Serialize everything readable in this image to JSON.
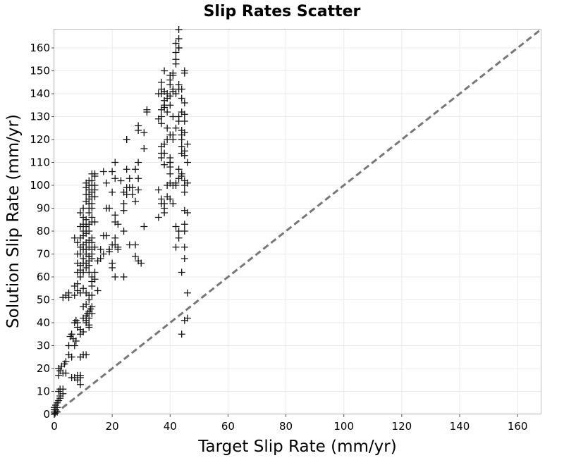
{
  "chart_data": {
    "type": "scatter",
    "title": "Slip Rates Scatter",
    "xlabel": "Target Slip Rate (mm/yr)",
    "ylabel": "Solution Slip Rate (mm/yr)",
    "xlim": [
      0,
      168
    ],
    "ylim": [
      0,
      168
    ],
    "xticks": [
      0,
      20,
      40,
      60,
      80,
      100,
      120,
      140,
      160
    ],
    "yticks": [
      0,
      10,
      20,
      30,
      40,
      50,
      60,
      70,
      80,
      90,
      100,
      110,
      120,
      130,
      140,
      150,
      160
    ],
    "grid": true,
    "marker": "+",
    "colors": {
      "marker": "#111111",
      "reference_line": "#777777",
      "grid": "#ebebeb",
      "frame": "#bdbdbd"
    },
    "reference_line": {
      "style": "dashed",
      "points": [
        [
          0,
          0
        ],
        [
          168,
          168
        ]
      ]
    },
    "points": [
      [
        0,
        0
      ],
      [
        0,
        1
      ],
      [
        0,
        2
      ],
      [
        0,
        3
      ],
      [
        0.3,
        0.5
      ],
      [
        0.5,
        2
      ],
      [
        0.5,
        4
      ],
      [
        1,
        1
      ],
      [
        1,
        3
      ],
      [
        1,
        5
      ],
      [
        1.5,
        6
      ],
      [
        1.5,
        10
      ],
      [
        2,
        7
      ],
      [
        2,
        8
      ],
      [
        2,
        11
      ],
      [
        1.5,
        17
      ],
      [
        1.5,
        20
      ],
      [
        2,
        19
      ],
      [
        2.5,
        21
      ],
      [
        3,
        18
      ],
      [
        3.5,
        22
      ],
      [
        3,
        11
      ],
      [
        3,
        9
      ],
      [
        4,
        23
      ],
      [
        4,
        18
      ],
      [
        5,
        26
      ],
      [
        5,
        30
      ],
      [
        6,
        25
      ],
      [
        5.5,
        34
      ],
      [
        6,
        35
      ],
      [
        6.5,
        33
      ],
      [
        7,
        30
      ],
      [
        7.5,
        32
      ],
      [
        6,
        16
      ],
      [
        7,
        16
      ],
      [
        8,
        15
      ],
      [
        8,
        17
      ],
      [
        9,
        16
      ],
      [
        9,
        13
      ],
      [
        9,
        17
      ],
      [
        9,
        25
      ],
      [
        10,
        26
      ],
      [
        11,
        26
      ],
      [
        7,
        40
      ],
      [
        7.5,
        41
      ],
      [
        8,
        38
      ],
      [
        8,
        40
      ],
      [
        9,
        37
      ],
      [
        9,
        35
      ],
      [
        10,
        36
      ],
      [
        10,
        42
      ],
      [
        11,
        40
      ],
      [
        11.5,
        44
      ],
      [
        12,
        45
      ],
      [
        12,
        42
      ],
      [
        12.5,
        46
      ],
      [
        13,
        47
      ],
      [
        13,
        44
      ],
      [
        11,
        48
      ],
      [
        10,
        47
      ],
      [
        11,
        43
      ],
      [
        12,
        39
      ],
      [
        12,
        38
      ],
      [
        11,
        41
      ],
      [
        12,
        52
      ],
      [
        12,
        50
      ],
      [
        13,
        52
      ],
      [
        13,
        56
      ],
      [
        13,
        58
      ],
      [
        12,
        62
      ],
      [
        13,
        60
      ],
      [
        14,
        62
      ],
      [
        14,
        59
      ],
      [
        15,
        54
      ],
      [
        3,
        51
      ],
      [
        4,
        52
      ],
      [
        5,
        51
      ],
      [
        5,
        53
      ],
      [
        7,
        52
      ],
      [
        7,
        56
      ],
      [
        8,
        54
      ],
      [
        9,
        53
      ],
      [
        10,
        55
      ],
      [
        11,
        53
      ],
      [
        8,
        57
      ],
      [
        8,
        62
      ],
      [
        9,
        60
      ],
      [
        9,
        63
      ],
      [
        10,
        62
      ],
      [
        11,
        64
      ],
      [
        11,
        66
      ],
      [
        12,
        67
      ],
      [
        12,
        65
      ],
      [
        12,
        69
      ],
      [
        13,
        68
      ],
      [
        13,
        70
      ],
      [
        10,
        68
      ],
      [
        9,
        70
      ],
      [
        9,
        73
      ],
      [
        10,
        72
      ],
      [
        10,
        74
      ],
      [
        11,
        72
      ],
      [
        11,
        70
      ],
      [
        11,
        75
      ],
      [
        12,
        73
      ],
      [
        12,
        76
      ],
      [
        13,
        77
      ],
      [
        13,
        75
      ],
      [
        14,
        73
      ],
      [
        13,
        72
      ],
      [
        8,
        66
      ],
      [
        9,
        65
      ],
      [
        10,
        66
      ],
      [
        8,
        70
      ],
      [
        8,
        75
      ],
      [
        9,
        77
      ],
      [
        10,
        78
      ],
      [
        10,
        80
      ],
      [
        11,
        82
      ],
      [
        11,
        85
      ],
      [
        12,
        83
      ],
      [
        12,
        80
      ],
      [
        13,
        84
      ],
      [
        13,
        86
      ],
      [
        14,
        84
      ],
      [
        12,
        88
      ],
      [
        12,
        90
      ],
      [
        12,
        92
      ],
      [
        12,
        94
      ],
      [
        12,
        96
      ],
      [
        12,
        98
      ],
      [
        13,
        90
      ],
      [
        13,
        92
      ],
      [
        13,
        95
      ],
      [
        13,
        97
      ],
      [
        13,
        100
      ],
      [
        13,
        102
      ],
      [
        14,
        104
      ],
      [
        14,
        100
      ],
      [
        14,
        98
      ],
      [
        14,
        95
      ],
      [
        12,
        100
      ],
      [
        12,
        102
      ],
      [
        11,
        96
      ],
      [
        11,
        93
      ],
      [
        11,
        99
      ],
      [
        11,
        101
      ],
      [
        13,
        105
      ],
      [
        14,
        105
      ],
      [
        11,
        79
      ],
      [
        10,
        83
      ],
      [
        10,
        86
      ],
      [
        9,
        88
      ],
      [
        9,
        82
      ],
      [
        10,
        90
      ],
      [
        7,
        77
      ],
      [
        12,
        69
      ],
      [
        15,
        67
      ],
      [
        16,
        68
      ],
      [
        16,
        72
      ],
      [
        17,
        70
      ],
      [
        17,
        78
      ],
      [
        18,
        78
      ],
      [
        19,
        72
      ],
      [
        19,
        71
      ],
      [
        20,
        74
      ],
      [
        21,
        74
      ],
      [
        21,
        77
      ],
      [
        22,
        73
      ],
      [
        22,
        72
      ],
      [
        20,
        64
      ],
      [
        21,
        60
      ],
      [
        20,
        66
      ],
      [
        24,
        60
      ],
      [
        26,
        74
      ],
      [
        28,
        74
      ],
      [
        29,
        67
      ],
      [
        30,
        66
      ],
      [
        28,
        69
      ],
      [
        18,
        90
      ],
      [
        19,
        90
      ],
      [
        20,
        97
      ],
      [
        20,
        106
      ],
      [
        18,
        101
      ],
      [
        17,
        106
      ],
      [
        21,
        103
      ],
      [
        21,
        110
      ],
      [
        21,
        87
      ],
      [
        21,
        84
      ],
      [
        22,
        83
      ],
      [
        24,
        80
      ],
      [
        24,
        89
      ],
      [
        24,
        92
      ],
      [
        24,
        97
      ],
      [
        25,
        96
      ],
      [
        25,
        99
      ],
      [
        23,
        102
      ],
      [
        25,
        107
      ],
      [
        26,
        103
      ],
      [
        26,
        99
      ],
      [
        27,
        99
      ],
      [
        27,
        96
      ],
      [
        28,
        93
      ],
      [
        29,
        98
      ],
      [
        28,
        107
      ],
      [
        29,
        103
      ],
      [
        29,
        110
      ],
      [
        25,
        120
      ],
      [
        25,
        120
      ],
      [
        29,
        124
      ],
      [
        29,
        126
      ],
      [
        31,
        116
      ],
      [
        31,
        123
      ],
      [
        32,
        132
      ],
      [
        32,
        133
      ],
      [
        31,
        82
      ],
      [
        36,
        86
      ],
      [
        36,
        98
      ],
      [
        37,
        92
      ],
      [
        37,
        94
      ],
      [
        38,
        92
      ],
      [
        38,
        88
      ],
      [
        38,
        90
      ],
      [
        39,
        95
      ],
      [
        40,
        94
      ],
      [
        40,
        101
      ],
      [
        41,
        100
      ],
      [
        42,
        100
      ],
      [
        42,
        101
      ],
      [
        43,
        103
      ],
      [
        44,
        104
      ],
      [
        44,
        105
      ],
      [
        43,
        107
      ],
      [
        41,
        92
      ],
      [
        42,
        82
      ],
      [
        43,
        80
      ],
      [
        43,
        77
      ],
      [
        42,
        73
      ],
      [
        44,
        62
      ],
      [
        44,
        35
      ],
      [
        45,
        41
      ],
      [
        46,
        42
      ],
      [
        46,
        53
      ],
      [
        45,
        68
      ],
      [
        45,
        73
      ],
      [
        45,
        80
      ],
      [
        45,
        83
      ],
      [
        45,
        89
      ],
      [
        46,
        88
      ],
      [
        45,
        97
      ],
      [
        45,
        100
      ],
      [
        45,
        102
      ],
      [
        46,
        101
      ],
      [
        46,
        110
      ],
      [
        45,
        113
      ],
      [
        46,
        118
      ],
      [
        45,
        123
      ],
      [
        45,
        128
      ],
      [
        45,
        131
      ],
      [
        44,
        132
      ],
      [
        45,
        136
      ],
      [
        44,
        138
      ],
      [
        44,
        142
      ],
      [
        43,
        142
      ],
      [
        43,
        144
      ],
      [
        42,
        140
      ],
      [
        41,
        141
      ],
      [
        40,
        139
      ],
      [
        40,
        135
      ],
      [
        39,
        132
      ],
      [
        38,
        134
      ],
      [
        38,
        134
      ],
      [
        37,
        133
      ],
      [
        37,
        130
      ],
      [
        36,
        129
      ],
      [
        37,
        127
      ],
      [
        38,
        135
      ],
      [
        38,
        137
      ],
      [
        39,
        140
      ],
      [
        39,
        138
      ],
      [
        38,
        141
      ],
      [
        37,
        140
      ],
      [
        36,
        140
      ],
      [
        37,
        142
      ],
      [
        37,
        145
      ],
      [
        38,
        150
      ],
      [
        40,
        144
      ],
      [
        40,
        146
      ],
      [
        41,
        142
      ],
      [
        41,
        148
      ],
      [
        40,
        148
      ],
      [
        42,
        153
      ],
      [
        42,
        155
      ],
      [
        43,
        160
      ],
      [
        42,
        162
      ],
      [
        43,
        160
      ],
      [
        43,
        164
      ],
      [
        43,
        168
      ],
      [
        42,
        158
      ],
      [
        41,
        149
      ],
      [
        40,
        122
      ],
      [
        39,
        125
      ],
      [
        39,
        120
      ],
      [
        38,
        114
      ],
      [
        38,
        109
      ],
      [
        37,
        112
      ],
      [
        37,
        114
      ],
      [
        37,
        117
      ],
      [
        38,
        118
      ],
      [
        40,
        112
      ],
      [
        40,
        110
      ],
      [
        40,
        108
      ],
      [
        41,
        120
      ],
      [
        41,
        122
      ],
      [
        41,
        130
      ],
      [
        42,
        125
      ],
      [
        43,
        130
      ],
      [
        43,
        128
      ],
      [
        44,
        124
      ],
      [
        44,
        122
      ],
      [
        44,
        114
      ],
      [
        44,
        117
      ],
      [
        45,
        115
      ],
      [
        44,
        120
      ],
      [
        40,
        105
      ],
      [
        39,
        100
      ],
      [
        40,
        110
      ],
      [
        45,
        149
      ],
      [
        45,
        150
      ]
    ]
  }
}
